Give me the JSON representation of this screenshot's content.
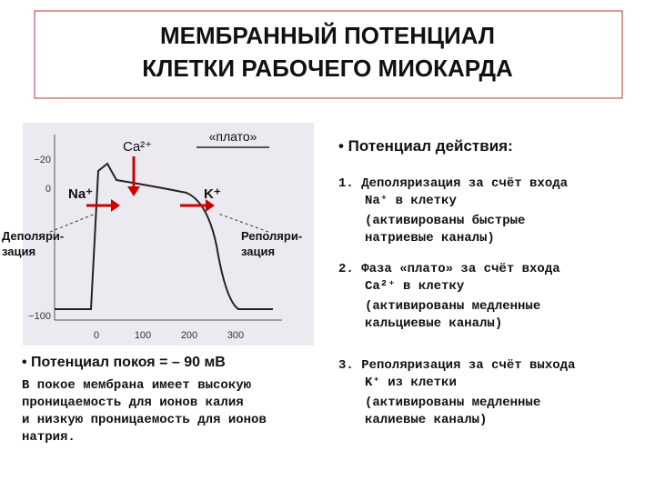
{
  "header": {
    "title": [
      "МЕМБРАННЫЙ ПОТЕНЦИАЛ",
      "КЛЕТКИ РАБОЧЕГО МИОКАРДА"
    ]
  },
  "figure": {
    "y_tick_labels": [
      "−20",
      "0",
      "−100"
    ],
    "x_tick_labels": [
      "0",
      "100",
      "200",
      "300"
    ],
    "labels": {
      "ca": "Ca²⁺",
      "plateau": "«плато»",
      "na": "Na⁺",
      "k": "K⁺",
      "depolarization": [
        "Деполяри-",
        "зация"
      ],
      "repolarization": [
        "Реполяри-",
        "зация"
      ]
    }
  },
  "resting": {
    "heading": "• Потенциал покоя = – 90 мВ",
    "lines": [
      "В покое мембрана имеет высокую",
      "проницаемость для ионов калия",
      "и низкую проницаемость для ионов",
      "натрия."
    ]
  },
  "action": {
    "heading": "•  Потенциал действия:",
    "items": [
      [
        "1. Деполяризация за счёт входа",
        "Na⁺ в клетку",
        "(активированы быстрые",
        "натриевые каналы)"
      ],
      [
        "2. Фаза «плато» за счёт входа",
        "Ca²⁺  в клетку",
        "(активированы медленные",
        "кальциевые каналы)"
      ],
      [
        "3. Реполяризация за счёт выхода",
        "K⁺ из клетки",
        "(активированы медленные",
        "калиевые каналы)"
      ]
    ]
  }
}
